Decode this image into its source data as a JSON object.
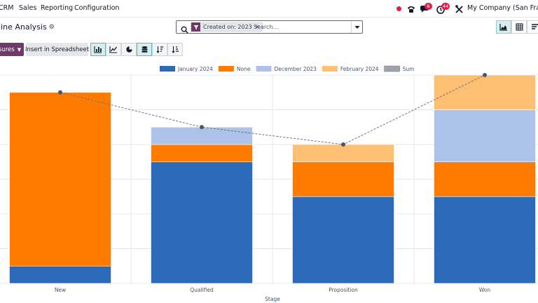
{
  "navbar": {
    "app_name": "CRM",
    "menu": [
      "Sales",
      "Reporting",
      "Configuration"
    ],
    "icons": [
      "activity-dot",
      "phone-icon",
      "chat-icon",
      "clock-icon",
      "tools-icon"
    ],
    "chat_badge": "6",
    "activity_badge": "44",
    "company": "My Company (San Francisco)"
  },
  "control": {
    "title": "line Analysis",
    "search": {
      "facet_label": "Created on: 2023",
      "placeholder": "Search..."
    }
  },
  "toolbar": {
    "measures_label": "sures",
    "insert_label": "Insert in Spreadsheet"
  },
  "colors": {
    "accent": "#71396b",
    "teal": "#0f8a8a",
    "jan2024": "#2b6ab8",
    "none": "#ff7b00",
    "dec2023": "#adc2e8",
    "feb2024": "#ffbf73"
  },
  "chart_data": {
    "type": "bar",
    "stacked": true,
    "xlabel": "Stage",
    "categories": [
      "New",
      "Qualified",
      "Proposition",
      "Won"
    ],
    "legend_position": "top",
    "grid": true,
    "series": [
      {
        "name": "January 2024",
        "color": "#2b6ab8",
        "values": [
          0.5,
          3.5,
          2.5,
          2.5
        ]
      },
      {
        "name": "None",
        "color": "#ff7b00",
        "values": [
          5,
          0.5,
          1,
          1
        ]
      },
      {
        "name": "December 2023",
        "color": "#adc2e8",
        "values": [
          0,
          0.5,
          0,
          1.5
        ]
      },
      {
        "name": "February 2024",
        "color": "#ffbf73",
        "values": [
          0,
          0,
          0.5,
          1
        ]
      }
    ],
    "sum_series": {
      "name": "Sum",
      "values": [
        5.5,
        4.5,
        4,
        6
      ]
    },
    "ylim": [
      0,
      6
    ]
  }
}
